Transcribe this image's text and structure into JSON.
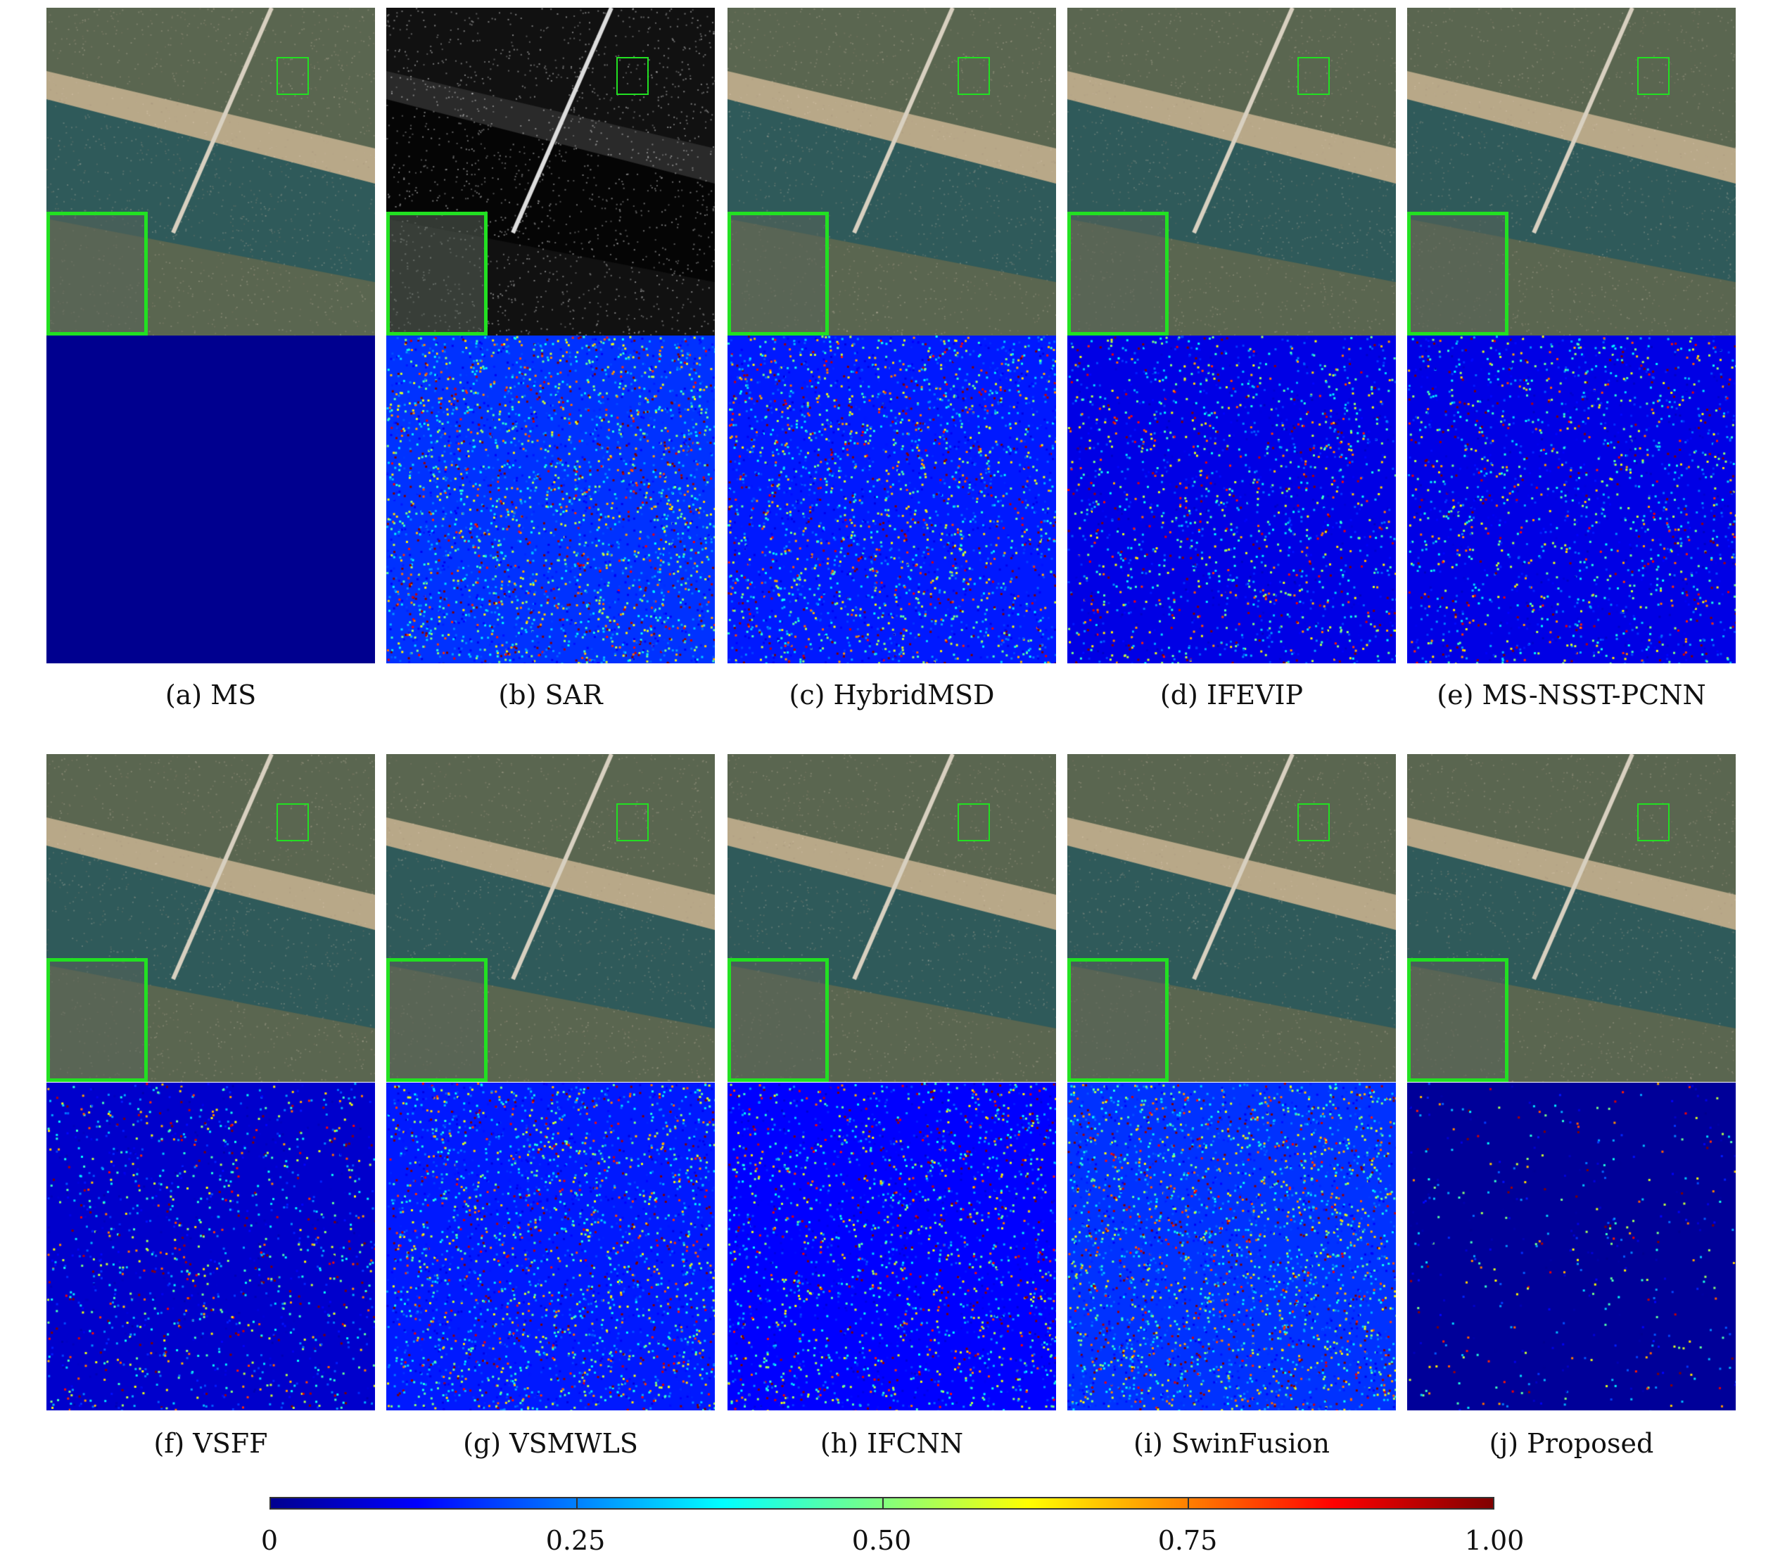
{
  "panels": [
    {
      "caption": "(a) MS",
      "error_level": 0
    },
    {
      "caption": "(b) SAR",
      "error_level": 0.35
    },
    {
      "caption": "(c) HybridMSD",
      "error_level": 0.3
    },
    {
      "caption": "(d) IFEVIP",
      "error_level": 0.2
    },
    {
      "caption": "(e) MS-NSST-PCNN",
      "error_level": 0.2
    },
    {
      "caption": "(f) VSFF",
      "error_level": 0.15
    },
    {
      "caption": "(g) VSMWLS",
      "error_level": 0.3
    },
    {
      "caption": "(h) IFCNN",
      "error_level": 0.25
    },
    {
      "caption": "(i) SwinFusion",
      "error_level": 0.35
    },
    {
      "caption": "(j) Proposed",
      "error_level": 0.05
    }
  ],
  "colorbar": {
    "colormap": "jet",
    "ticks": [
      "0",
      "0.25",
      "0.50",
      "0.75",
      "1.00"
    ],
    "range": [
      0,
      1
    ]
  },
  "colors": {
    "highlight_box": "#22e022"
  }
}
